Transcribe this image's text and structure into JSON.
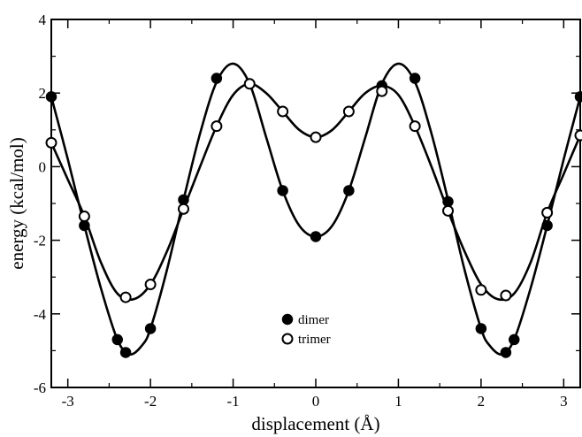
{
  "chart_data": {
    "type": "scatter",
    "title": "",
    "xlabel": "displacement (Å)",
    "ylabel": "energy (kcal/mol)",
    "xlim": [
      -3.2,
      3.2
    ],
    "ylim": [
      -6,
      4
    ],
    "xticks": [
      -3,
      -2,
      -1,
      0,
      1,
      2,
      3
    ],
    "yticks": [
      -6,
      -4,
      -2,
      0,
      2,
      4
    ],
    "grid": false,
    "legend_position": "center-bottom",
    "series": [
      {
        "name": "dimer",
        "marker": "filled-circle",
        "points": [
          {
            "x": -3.2,
            "y": 1.9
          },
          {
            "x": -2.8,
            "y": -1.6
          },
          {
            "x": -2.4,
            "y": -4.7
          },
          {
            "x": -2.3,
            "y": -5.05
          },
          {
            "x": -2.0,
            "y": -4.4
          },
          {
            "x": -1.6,
            "y": -0.9
          },
          {
            "x": -1.2,
            "y": 2.4
          },
          {
            "x": -0.8,
            "y": 2.25
          },
          {
            "x": -0.4,
            "y": -0.65
          },
          {
            "x": 0.0,
            "y": -1.9
          },
          {
            "x": 0.4,
            "y": -0.65
          },
          {
            "x": 0.8,
            "y": 2.2
          },
          {
            "x": 1.2,
            "y": 2.4
          },
          {
            "x": 1.6,
            "y": -0.95
          },
          {
            "x": 2.0,
            "y": -4.4
          },
          {
            "x": 2.3,
            "y": -5.05
          },
          {
            "x": 2.4,
            "y": -4.7
          },
          {
            "x": 2.8,
            "y": -1.6
          },
          {
            "x": 3.2,
            "y": 1.9
          }
        ],
        "curve": [
          {
            "x": -3.2,
            "y": 1.9
          },
          {
            "x": -3.0,
            "y": 0.2
          },
          {
            "x": -2.8,
            "y": -1.6
          },
          {
            "x": -2.6,
            "y": -3.3
          },
          {
            "x": -2.4,
            "y": -4.7
          },
          {
            "x": -2.25,
            "y": -5.1
          },
          {
            "x": -2.1,
            "y": -4.85
          },
          {
            "x": -2.0,
            "y": -4.4
          },
          {
            "x": -1.8,
            "y": -2.8
          },
          {
            "x": -1.6,
            "y": -0.9
          },
          {
            "x": -1.4,
            "y": 0.9
          },
          {
            "x": -1.2,
            "y": 2.3
          },
          {
            "x": -1.0,
            "y": 2.8
          },
          {
            "x": -0.8,
            "y": 2.25
          },
          {
            "x": -0.6,
            "y": 0.8
          },
          {
            "x": -0.4,
            "y": -0.65
          },
          {
            "x": -0.2,
            "y": -1.6
          },
          {
            "x": 0.0,
            "y": -1.9
          },
          {
            "x": 0.2,
            "y": -1.6
          },
          {
            "x": 0.4,
            "y": -0.65
          },
          {
            "x": 0.6,
            "y": 0.8
          },
          {
            "x": 0.8,
            "y": 2.25
          },
          {
            "x": 1.0,
            "y": 2.8
          },
          {
            "x": 1.2,
            "y": 2.3
          },
          {
            "x": 1.4,
            "y": 0.9
          },
          {
            "x": 1.6,
            "y": -0.9
          },
          {
            "x": 1.8,
            "y": -2.8
          },
          {
            "x": 2.0,
            "y": -4.4
          },
          {
            "x": 2.1,
            "y": -4.85
          },
          {
            "x": 2.25,
            "y": -5.1
          },
          {
            "x": 2.4,
            "y": -4.7
          },
          {
            "x": 2.6,
            "y": -3.3
          },
          {
            "x": 2.8,
            "y": -1.6
          },
          {
            "x": 3.0,
            "y": 0.2
          },
          {
            "x": 3.2,
            "y": 1.9
          }
        ]
      },
      {
        "name": "trimer",
        "marker": "open-circle",
        "points": [
          {
            "x": -3.2,
            "y": 0.65
          },
          {
            "x": -2.8,
            "y": -1.35
          },
          {
            "x": -2.3,
            "y": -3.55
          },
          {
            "x": -2.0,
            "y": -3.2
          },
          {
            "x": -1.6,
            "y": -1.15
          },
          {
            "x": -1.2,
            "y": 1.1
          },
          {
            "x": -0.8,
            "y": 2.25
          },
          {
            "x": -0.4,
            "y": 1.5
          },
          {
            "x": 0.0,
            "y": 0.8
          },
          {
            "x": 0.4,
            "y": 1.5
          },
          {
            "x": 0.8,
            "y": 2.05
          },
          {
            "x": 1.2,
            "y": 1.1
          },
          {
            "x": 1.6,
            "y": -1.2
          },
          {
            "x": 2.0,
            "y": -3.35
          },
          {
            "x": 2.3,
            "y": -3.5
          },
          {
            "x": 2.8,
            "y": -1.25
          },
          {
            "x": 3.2,
            "y": 0.85
          }
        ],
        "curve": [
          {
            "x": -3.2,
            "y": 0.65
          },
          {
            "x": -3.0,
            "y": -0.35
          },
          {
            "x": -2.8,
            "y": -1.35
          },
          {
            "x": -2.6,
            "y": -2.6
          },
          {
            "x": -2.4,
            "y": -3.45
          },
          {
            "x": -2.2,
            "y": -3.6
          },
          {
            "x": -2.0,
            "y": -3.2
          },
          {
            "x": -1.8,
            "y": -2.3
          },
          {
            "x": -1.6,
            "y": -1.15
          },
          {
            "x": -1.4,
            "y": 0.0
          },
          {
            "x": -1.2,
            "y": 1.1
          },
          {
            "x": -1.0,
            "y": 1.95
          },
          {
            "x": -0.8,
            "y": 2.25
          },
          {
            "x": -0.6,
            "y": 2.0
          },
          {
            "x": -0.4,
            "y": 1.5
          },
          {
            "x": -0.2,
            "y": 1.0
          },
          {
            "x": 0.0,
            "y": 0.8
          },
          {
            "x": 0.2,
            "y": 1.0
          },
          {
            "x": 0.4,
            "y": 1.5
          },
          {
            "x": 0.6,
            "y": 2.0
          },
          {
            "x": 0.8,
            "y": 2.2
          },
          {
            "x": 1.0,
            "y": 1.95
          },
          {
            "x": 1.2,
            "y": 1.1
          },
          {
            "x": 1.4,
            "y": 0.0
          },
          {
            "x": 1.6,
            "y": -1.2
          },
          {
            "x": 1.8,
            "y": -2.3
          },
          {
            "x": 2.0,
            "y": -3.2
          },
          {
            "x": 2.2,
            "y": -3.6
          },
          {
            "x": 2.4,
            "y": -3.45
          },
          {
            "x": 2.6,
            "y": -2.6
          },
          {
            "x": 2.8,
            "y": -1.25
          },
          {
            "x": 3.0,
            "y": -0.2
          },
          {
            "x": 3.2,
            "y": 0.85
          }
        ]
      }
    ]
  }
}
